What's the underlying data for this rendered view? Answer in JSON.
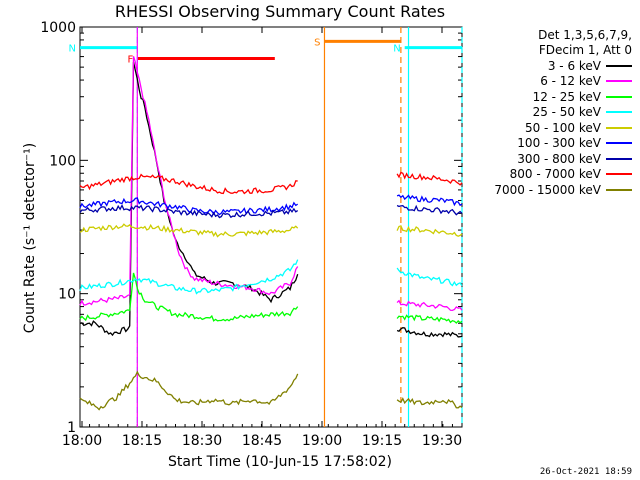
{
  "chart_data": {
    "type": "line",
    "title": "RHESSI Observing Summary Count Rates",
    "xlabel": "Start Time (10-Jun-15 17:58:02)",
    "ylabel": "Count Rate (s⁻¹ detector⁻¹)",
    "y_scale": "log",
    "ylim": [
      1,
      1000
    ],
    "x_range_minutes": [
      0,
      100
    ],
    "x_tick_labels": [
      "18:00",
      "18:15",
      "18:30",
      "18:45",
      "19:00",
      "19:15",
      "19:30"
    ],
    "y_tick_labels": [
      "1",
      "10",
      "100",
      "1000"
    ],
    "legend_header": [
      "Det 1,3,5,6,7,9,",
      "FDecim 1, Att 0"
    ],
    "legend_position": "right",
    "series": [
      {
        "name": "3 - 6 keV",
        "color": "#000000",
        "segments": [
          {
            "x": [
              0,
              4,
              8,
              13,
              14,
              15,
              16,
              17,
              18,
              20,
              22,
              25,
              28,
              30,
              35,
              40,
              45,
              50,
              55,
              57
            ],
            "y": [
              6,
              6,
              5,
              5.5,
              550,
              400,
              300,
              250,
              180,
              100,
              50,
              25,
              18,
              14,
              12,
              12,
              11,
              9,
              11,
              14
            ]
          },
          {
            "x": [
              83,
              90,
              95,
              100
            ],
            "y": [
              5.5,
              5,
              5,
              4.8
            ]
          }
        ]
      },
      {
        "name": "6 - 12 keV",
        "color": "#ff00ff",
        "segments": [
          {
            "x": [
              0,
              5,
              10,
              13,
              14,
              15,
              16,
              18,
              20,
              23,
              26,
              28,
              30,
              35,
              40,
              45,
              50,
              55,
              57
            ],
            "y": [
              8.5,
              8.8,
              9.2,
              9.6,
              600,
              450,
              350,
              200,
              100,
              40,
              20,
              15,
              13,
              12,
              11.5,
              11,
              10,
              12,
              16
            ]
          },
          {
            "x": [
              83,
              90,
              95,
              100
            ],
            "y": [
              8.5,
              8.2,
              8,
              7.5
            ]
          }
        ]
      },
      {
        "name": "12 - 25 keV",
        "color": "#00ff00",
        "segments": [
          {
            "x": [
              0,
              5,
              10,
              13,
              14,
              15,
              17,
              20,
              25,
              30,
              35,
              40,
              45,
              50,
              55,
              57
            ],
            "y": [
              6.5,
              6.8,
              7.2,
              7.5,
              15,
              11,
              9,
              8,
              7,
              6.8,
              6.5,
              6.5,
              6.8,
              7,
              7.2,
              8
            ]
          },
          {
            "x": [
              83,
              90,
              95,
              100
            ],
            "y": [
              6.8,
              6.5,
              6.4,
              6.2
            ]
          }
        ]
      },
      {
        "name": "25 - 50 keV",
        "color": "#00ffff",
        "segments": [
          {
            "x": [
              0,
              5,
              10,
              13,
              15,
              20,
              25,
              30,
              35,
              40,
              45,
              50,
              55,
              57
            ],
            "y": [
              11,
              11.5,
              12,
              12.5,
              13,
              12,
              11,
              10.5,
              10.5,
              11,
              12,
              13,
              15,
              18
            ]
          },
          {
            "x": [
              83,
              90,
              95,
              100
            ],
            "y": [
              15,
              13,
              12.5,
              11.5
            ]
          }
        ]
      },
      {
        "name": "50 - 100 keV",
        "color": "#cccc00",
        "segments": [
          {
            "x": [
              0,
              5,
              10,
              15,
              20,
              25,
              30,
              35,
              40,
              45,
              50,
              55,
              57
            ],
            "y": [
              30,
              31,
              32,
              32,
              31,
              30,
              29,
              28,
              28,
              28.5,
              29,
              30,
              31
            ]
          },
          {
            "x": [
              83,
              90,
              95,
              100
            ],
            "y": [
              31,
              30,
              29,
              28
            ]
          }
        ]
      },
      {
        "name": "100 - 300 keV",
        "color": "#0000ff",
        "segments": [
          {
            "x": [
              0,
              5,
              10,
              15,
              20,
              25,
              30,
              35,
              40,
              45,
              50,
              55,
              57
            ],
            "y": [
              45,
              47,
              49,
              50,
              47,
              45,
              42,
              41,
              41,
              42,
              43,
              45,
              47
            ]
          },
          {
            "x": [
              83,
              90,
              95,
              100
            ],
            "y": [
              53,
              51,
              50,
              47
            ]
          }
        ]
      },
      {
        "name": "300 - 800 keV",
        "color": "#0000aa",
        "segments": [
          {
            "x": [
              0,
              5,
              10,
              15,
              20,
              25,
              30,
              35,
              40,
              45,
              50,
              55,
              57
            ],
            "y": [
              42,
              43,
              44,
              44,
              43,
              41,
              40,
              39,
              39,
              40,
              40,
              41,
              42
            ]
          },
          {
            "x": [
              83,
              90,
              95,
              100
            ],
            "y": [
              45,
              43,
              42,
              40
            ]
          }
        ]
      },
      {
        "name": "800 - 7000 keV",
        "color": "#ff0000",
        "segments": [
          {
            "x": [
              0,
              5,
              10,
              15,
              20,
              25,
              30,
              35,
              40,
              45,
              50,
              55,
              57
            ],
            "y": [
              62,
              66,
              71,
              75,
              74,
              70,
              64,
              60,
              58,
              59,
              60,
              64,
              70
            ]
          },
          {
            "x": [
              83,
              90,
              95,
              100
            ],
            "y": [
              78,
              75,
              72,
              68
            ]
          }
        ]
      },
      {
        "name": "7000 - 15000 keV",
        "color": "#808000",
        "segments": [
          {
            "x": [
              0,
              5,
              10,
              15,
              20,
              25,
              30,
              35,
              40,
              45,
              50,
              55,
              57
            ],
            "y": [
              1.6,
              1.4,
              1.7,
              2.5,
              2.2,
              1.6,
              1.5,
              1.6,
              1.5,
              1.6,
              1.5,
              2,
              2.5
            ]
          },
          {
            "x": [
              83,
              90,
              95,
              100
            ],
            "y": [
              1.6,
              1.5,
              1.6,
              1.4
            ]
          }
        ]
      },
      {
        "name": "",
        "color": "#ff8000",
        "segments": []
      }
    ],
    "flags": [
      {
        "label": "N",
        "color": "#00ffff",
        "y": 700,
        "x_start": 0,
        "x_end": 15
      },
      {
        "label": "N",
        "color": "#00ffff",
        "y": 700,
        "x_start": 85,
        "x_end": 100
      },
      {
        "label": "F",
        "color": "#ff0000",
        "y": 580,
        "x_start": 15,
        "x_end": 51
      },
      {
        "label": "S",
        "color": "#ff8000",
        "y": 780,
        "x_start": 64,
        "x_end": 84
      }
    ],
    "vertical_markers": [
      {
        "color": "#00ffff",
        "x": 15,
        "style": "dashed"
      },
      {
        "color": "#ff00ff",
        "x": 15,
        "style": "solid"
      },
      {
        "color": "#ff8000",
        "x": 64,
        "style": "solid"
      },
      {
        "color": "#ff8000",
        "x": 84,
        "style": "dashed"
      },
      {
        "color": "#00ffff",
        "x": 86,
        "style": "solid"
      },
      {
        "color": "#00ffff",
        "x": 100,
        "style": "dashed"
      }
    ],
    "footer_date": "26-Oct-2021 18:59"
  },
  "colors": {
    "background": "#ffffff",
    "axis": "#000000"
  }
}
